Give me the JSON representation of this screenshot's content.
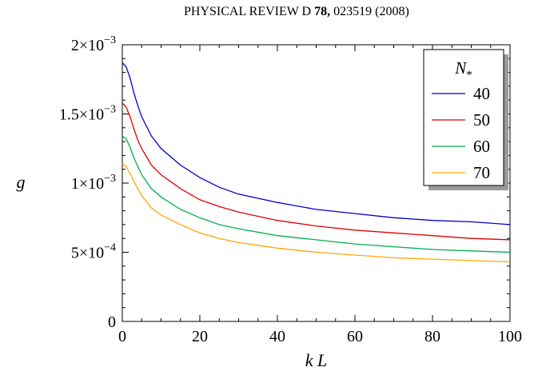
{
  "header": {
    "journal": "PHYSICAL REVIEW D",
    "volume": "78,",
    "article": "023519 (2008)"
  },
  "chart_data": {
    "type": "line",
    "xlabel": "k L",
    "ylabel": "g",
    "xlim": [
      0,
      100
    ],
    "ylim": [
      0,
      0.002
    ],
    "x_ticks": [
      0,
      20,
      40,
      60,
      80,
      100
    ],
    "x_tick_labels": [
      "0",
      "20",
      "40",
      "60",
      "80",
      "100"
    ],
    "y_ticks": [
      0,
      0.0005,
      0.001,
      0.0015,
      0.002
    ],
    "y_tick_labels": [
      {
        "mant": "0",
        "exp": ""
      },
      {
        "mant": "5×10",
        "exp": "−4"
      },
      {
        "mant": "1×10",
        "exp": "−3"
      },
      {
        "mant": "1.5×10",
        "exp": "−3"
      },
      {
        "mant": "2×10",
        "exp": "−3"
      }
    ],
    "legend": {
      "title_main": "N",
      "title_sub": "*",
      "position": "top-right"
    },
    "grid": false,
    "x": [
      0,
      1,
      2,
      3,
      4,
      5,
      7.5,
      10,
      15,
      20,
      25,
      30,
      40,
      50,
      60,
      70,
      80,
      90,
      100
    ],
    "series": [
      {
        "name": "40",
        "color": "#0000cc",
        "values": [
          0.00187,
          0.00184,
          0.00176,
          0.00165,
          0.00156,
          0.00148,
          0.00134,
          0.00125,
          0.00113,
          0.00104,
          0.00097,
          0.00092,
          0.00086,
          0.00081,
          0.00078,
          0.00075,
          0.00073,
          0.00072,
          0.0007
        ]
      },
      {
        "name": "50",
        "color": "#e00000",
        "values": [
          0.00158,
          0.00155,
          0.00148,
          0.00139,
          0.00131,
          0.00125,
          0.00113,
          0.00106,
          0.00096,
          0.00088,
          0.00083,
          0.00079,
          0.00073,
          0.00069,
          0.00066,
          0.00064,
          0.00062,
          0.0006,
          0.00059
        ]
      },
      {
        "name": "60",
        "color": "#00b050",
        "values": [
          0.00134,
          0.00132,
          0.00126,
          0.00118,
          0.00112,
          0.00106,
          0.00096,
          0.0009,
          0.00081,
          0.00075,
          0.0007,
          0.00067,
          0.00062,
          0.00059,
          0.00056,
          0.00054,
          0.00052,
          0.00051,
          0.0005
        ]
      },
      {
        "name": "70",
        "color": "#ffa500",
        "values": [
          0.00114,
          0.00112,
          0.00107,
          0.00101,
          0.00096,
          0.00091,
          0.00082,
          0.00077,
          0.0007,
          0.00064,
          0.0006,
          0.00057,
          0.00053,
          0.0005,
          0.00048,
          0.00046,
          0.00045,
          0.00044,
          0.00043
        ]
      }
    ]
  }
}
